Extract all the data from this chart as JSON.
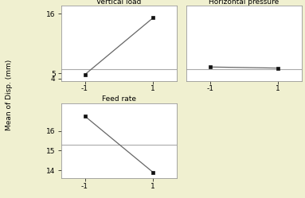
{
  "background_color": "#f0f0d0",
  "panel_background": "#ffffff",
  "plots": [
    {
      "title": "Vertical load",
      "x": [
        -1,
        1
      ],
      "y": [
        4.75,
        15.2
      ],
      "mean": 5.8,
      "ylim": [
        3.6,
        17.4
      ],
      "yticks": [
        4,
        5,
        16
      ],
      "ytick_labels": [
        "4",
        "5",
        "16"
      ]
    },
    {
      "title": "Horizontal pressure",
      "x": [
        -1,
        1
      ],
      "y": [
        6.15,
        5.95
      ],
      "mean": 5.8,
      "ylim": [
        3.6,
        17.4
      ],
      "yticks": [
        4,
        5,
        16
      ],
      "ytick_labels": [
        "4",
        "5",
        "16"
      ]
    },
    {
      "title": "Feed rate",
      "x": [
        -1,
        1
      ],
      "y": [
        16.75,
        13.9
      ],
      "mean": 15.3,
      "ylim": [
        13.6,
        17.4
      ],
      "yticks": [
        14,
        15,
        16
      ],
      "ytick_labels": [
        "14",
        "15",
        "16"
      ]
    }
  ],
  "ylabel": "Mean of Disp. (mm)",
  "line_color": "#666666",
  "mean_line_color": "#aaaaaa",
  "marker": "s",
  "marker_size": 3.5,
  "marker_color": "#111111",
  "font_size": 6.5,
  "title_font_size": 6.5,
  "ylabel_font_size": 6.5
}
